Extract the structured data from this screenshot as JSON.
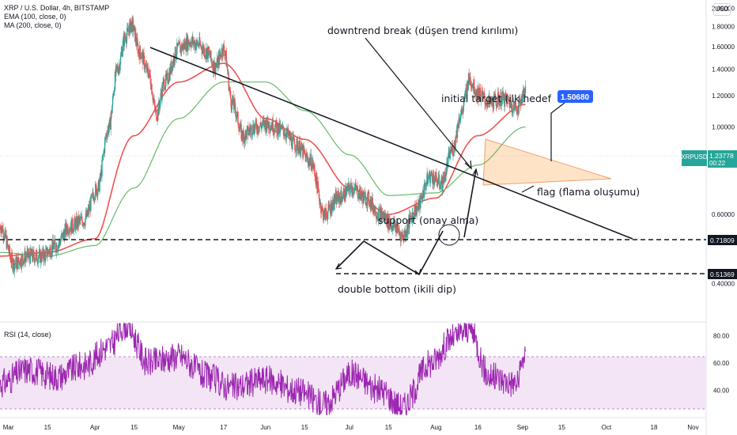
{
  "legend": {
    "title": "XRP / U.S. Dollar, 4h, BITSTAMP",
    "ema": "EMA (100, close, 0)",
    "ma": "MA (200, close, 0)",
    "rsi": "RSI (14, close)"
  },
  "currency": "USD",
  "annotations": {
    "downtrend": "downtrend break (düşen trend kırılımı)",
    "target_label": "initial target (ilk hedef",
    "target_value": "1.50680",
    "support": "support (onay alma)",
    "flag": "flag (flama oluşumu)",
    "double_bottom": "double bottom (ikili dip)"
  },
  "price_badges": {
    "symbol": "XRPUSD",
    "last": "1.23778",
    "countdown": "00:22",
    "level_high": "0.71809",
    "level_low": "0.51369"
  },
  "colors": {
    "up": "#26a69a",
    "down": "#ef5350",
    "ema": "#ef5350",
    "ma": "#66bb6a",
    "rsi": "#9c27b0",
    "rsi_band": "#f3e5f5",
    "flag_fill": "#ffcc99",
    "flag_stroke": "#f0a070",
    "target_badge": "#2962ff"
  },
  "chart_data": [
    {
      "type": "candlestick",
      "title": "XRP / U.S. Dollar, 4h, BITSTAMP",
      "y_ticks": [
        "2.00000",
        "1.80000",
        "1.60000",
        "1.40000",
        "1.20000",
        "1.00000",
        "0.80000",
        "0.60000",
        "0.40000"
      ],
      "x_ticks": [
        "Mar",
        "15",
        "Apr",
        "15",
        "May",
        "17",
        "Jun",
        "15",
        "Jul",
        "15",
        "Aug",
        "16",
        "Sep",
        "15",
        "Oct",
        "18",
        "Nov"
      ],
      "ylim": [
        0.32,
        2.1
      ],
      "horizontal_levels": [
        0.71809,
        0.51369
      ],
      "last_price": 1.23778,
      "target": 1.5068,
      "series": [
        {
          "name": "XRPUSD",
          "x": [
            "Feb 26",
            "Mar 3",
            "Mar 8",
            "Mar 13",
            "Mar 18",
            "Mar 23",
            "Mar 28",
            "Apr 2",
            "Apr 6",
            "Apr 9",
            "Apr 12",
            "Apr 14",
            "Apr 17",
            "Apr 20",
            "Apr 23",
            "Apr 26",
            "May 1",
            "May 5",
            "May 8",
            "May 11",
            "May 14",
            "May 17",
            "May 20",
            "May 24",
            "May 28",
            "Jun 2",
            "Jun 7",
            "Jun 12",
            "Jun 17",
            "Jun 22",
            "Jun 27",
            "Jul 2",
            "Jul 7",
            "Jul 12",
            "Jul 17",
            "Jul 20",
            "Jul 25",
            "Jul 30",
            "Aug 3",
            "Aug 7",
            "Aug 10",
            "Aug 13",
            "Aug 16",
            "Aug 20",
            "Aug 25",
            "Aug 30",
            "Sep 2"
          ],
          "values": [
            0.56,
            0.45,
            0.47,
            0.47,
            0.5,
            0.56,
            0.58,
            0.7,
            1.0,
            1.4,
            1.7,
            1.82,
            1.55,
            1.38,
            1.08,
            1.3,
            1.58,
            1.65,
            1.62,
            1.55,
            1.42,
            1.58,
            1.15,
            0.95,
            1.0,
            1.02,
            0.98,
            0.9,
            0.82,
            0.6,
            0.66,
            0.7,
            0.66,
            0.6,
            0.56,
            0.53,
            0.62,
            0.75,
            0.72,
            0.88,
            1.08,
            1.32,
            1.22,
            1.15,
            1.18,
            1.12,
            1.23778
          ]
        },
        {
          "name": "EMA (100, close, 0)",
          "x": [
            "Feb 26",
            "Mar 15",
            "Apr 1",
            "Apr 15",
            "May 1",
            "May 17",
            "Jun 1",
            "Jun 15",
            "Jul 1",
            "Jul 15",
            "Aug 1",
            "Aug 16",
            "Sep 2"
          ],
          "values": [
            0.47,
            0.48,
            0.52,
            0.95,
            1.3,
            1.45,
            1.05,
            0.93,
            0.7,
            0.6,
            0.66,
            0.95,
            1.14
          ]
        },
        {
          "name": "MA (200, close, 0)",
          "x": [
            "Feb 26",
            "Mar 15",
            "Apr 1",
            "Apr 15",
            "May 1",
            "May 17",
            "Jun 1",
            "Jun 15",
            "Jul 1",
            "Jul 15",
            "Aug 1",
            "Aug 16",
            "Sep 2"
          ],
          "values": [
            0.48,
            0.47,
            0.5,
            0.7,
            1.05,
            1.3,
            1.3,
            1.1,
            0.85,
            0.67,
            0.68,
            0.8,
            1.0
          ]
        }
      ]
    },
    {
      "type": "line",
      "title": "RSI (14, close)",
      "y_ticks": [
        "80.00",
        "60.00",
        "40.00"
      ],
      "ylim": [
        20,
        90
      ],
      "band": [
        30,
        70
      ],
      "series": [
        {
          "name": "RSI",
          "x": [
            "Feb 26",
            "Mar 8",
            "Mar 18",
            "Mar 28",
            "Apr 6",
            "Apr 12",
            "Apr 20",
            "May 1",
            "May 11",
            "May 20",
            "Jun 1",
            "Jun 12",
            "Jun 22",
            "Jul 2",
            "Jul 12",
            "Jul 20",
            "Jul 30",
            "Aug 7",
            "Aug 13",
            "Aug 20",
            "Aug 30",
            "Sep 2"
          ],
          "values": [
            45,
            55,
            50,
            58,
            72,
            88,
            60,
            65,
            50,
            42,
            48,
            40,
            30,
            52,
            40,
            28,
            60,
            78,
            85,
            50,
            45,
            68
          ]
        }
      ]
    }
  ]
}
